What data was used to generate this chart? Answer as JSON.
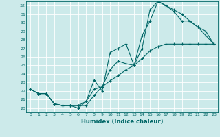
{
  "title": "",
  "xlabel": "Humidex (Indice chaleur)",
  "bg_color": "#cceaea",
  "line_color": "#006666",
  "grid_color": "#ffffff",
  "xlim": [
    -0.5,
    23.5
  ],
  "ylim": [
    19.5,
    32.5
  ],
  "xticks": [
    0,
    1,
    2,
    3,
    4,
    5,
    6,
    7,
    8,
    9,
    10,
    11,
    12,
    13,
    14,
    15,
    16,
    17,
    18,
    19,
    20,
    21,
    22,
    23
  ],
  "yticks": [
    20,
    21,
    22,
    23,
    24,
    25,
    26,
    27,
    28,
    29,
    30,
    31,
    32
  ],
  "line1_x": [
    0,
    1,
    2,
    3,
    4,
    5,
    6,
    7,
    8,
    9,
    10,
    11,
    12,
    13,
    14,
    15,
    16,
    17,
    18,
    19,
    20,
    21,
    22,
    23
  ],
  "line1_y": [
    22.2,
    21.7,
    21.7,
    20.5,
    20.3,
    20.3,
    20.0,
    20.8,
    23.3,
    22.0,
    26.5,
    27.0,
    27.5,
    25.0,
    28.5,
    30.2,
    32.5,
    32.0,
    31.3,
    30.2,
    30.2,
    29.5,
    28.5,
    27.5
  ],
  "line2_x": [
    0,
    1,
    2,
    3,
    4,
    5,
    6,
    7,
    8,
    9,
    10,
    11,
    12,
    13,
    14,
    15,
    16,
    17,
    18,
    19,
    20,
    21,
    22,
    23
  ],
  "line2_y": [
    22.2,
    21.7,
    21.7,
    20.5,
    20.3,
    20.3,
    20.3,
    20.3,
    21.5,
    22.5,
    24.5,
    25.5,
    25.2,
    25.0,
    27.0,
    31.5,
    32.5,
    32.0,
    31.5,
    31.0,
    30.2,
    29.5,
    29.0,
    27.5
  ],
  "line3_x": [
    0,
    1,
    2,
    3,
    4,
    5,
    6,
    7,
    8,
    9,
    10,
    11,
    12,
    13,
    14,
    15,
    16,
    17,
    18,
    19,
    20,
    21,
    22,
    23
  ],
  "line3_y": [
    22.2,
    21.7,
    21.7,
    20.5,
    20.3,
    20.3,
    20.3,
    20.8,
    22.2,
    22.5,
    23.2,
    23.8,
    24.5,
    25.0,
    25.8,
    26.7,
    27.2,
    27.5,
    27.5,
    27.5,
    27.5,
    27.5,
    27.5,
    27.5
  ]
}
